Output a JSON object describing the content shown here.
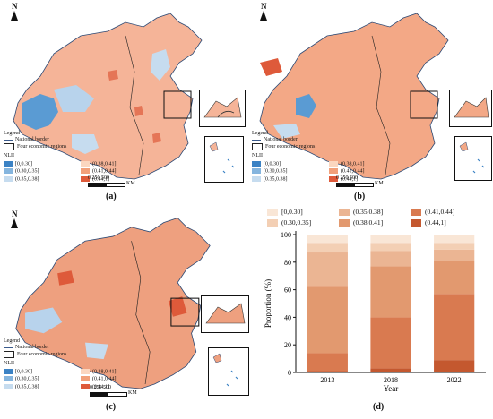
{
  "north_label": "N",
  "legend": {
    "title": "Legend",
    "national_border": "National border",
    "economic_regions": "Four economic regions",
    "index_title": "NLII",
    "classes": [
      {
        "label": "[0,0.30]",
        "color": "#3b82c4"
      },
      {
        "label": "(0.38,0.41]",
        "color": "#fbd6bf"
      },
      {
        "label": "(0.30,0.35]",
        "color": "#85b5de"
      },
      {
        "label": "(0.41,0.44]",
        "color": "#f2a07a"
      },
      {
        "label": "(0.35,0.38]",
        "color": "#c6dcef"
      },
      {
        "label": "(0.44,1]",
        "color": "#de5a3a"
      }
    ]
  },
  "scale": {
    "ticks": "0  250 500",
    "unit": "KM"
  },
  "panels": {
    "a": {
      "label": "(a)"
    },
    "b": {
      "label": "(b)"
    },
    "c": {
      "label": "(c)"
    },
    "d": {
      "label": "(d)"
    }
  },
  "chart_data": {
    "type": "bar",
    "stacked": true,
    "categories": [
      "2013",
      "2018",
      "2022"
    ],
    "xlabel": "Year",
    "ylabel": "Proportion (%)",
    "ylim": [
      0,
      100
    ],
    "yticks": [
      0,
      20,
      40,
      60,
      80,
      100
    ],
    "legend_position": "top",
    "series": [
      {
        "name": "(0.44,1]",
        "color": "#c4582f",
        "values": [
          1,
          3,
          9
        ]
      },
      {
        "name": "(0.41,0.44]",
        "color": "#d97a50",
        "values": [
          13,
          37,
          48
        ]
      },
      {
        "name": "(0.38,0.41]",
        "color": "#e2996f",
        "values": [
          48,
          37,
          24
        ]
      },
      {
        "name": "(0.35,0.38]",
        "color": "#ebb593",
        "values": [
          25,
          11,
          8
        ]
      },
      {
        "name": "(0.30,0.35]",
        "color": "#f3cfb4",
        "values": [
          7,
          6,
          5
        ]
      },
      {
        "name": "[0,0.30]",
        "color": "#f9e6d6",
        "values": [
          6,
          6,
          6
        ]
      }
    ],
    "legend_order": [
      "[0,0.30]",
      "(0.35,0.38]",
      "(0.41,0.44]",
      "(0.30,0.35]",
      "(0.38,0.41]",
      "(0.44,1]"
    ]
  }
}
